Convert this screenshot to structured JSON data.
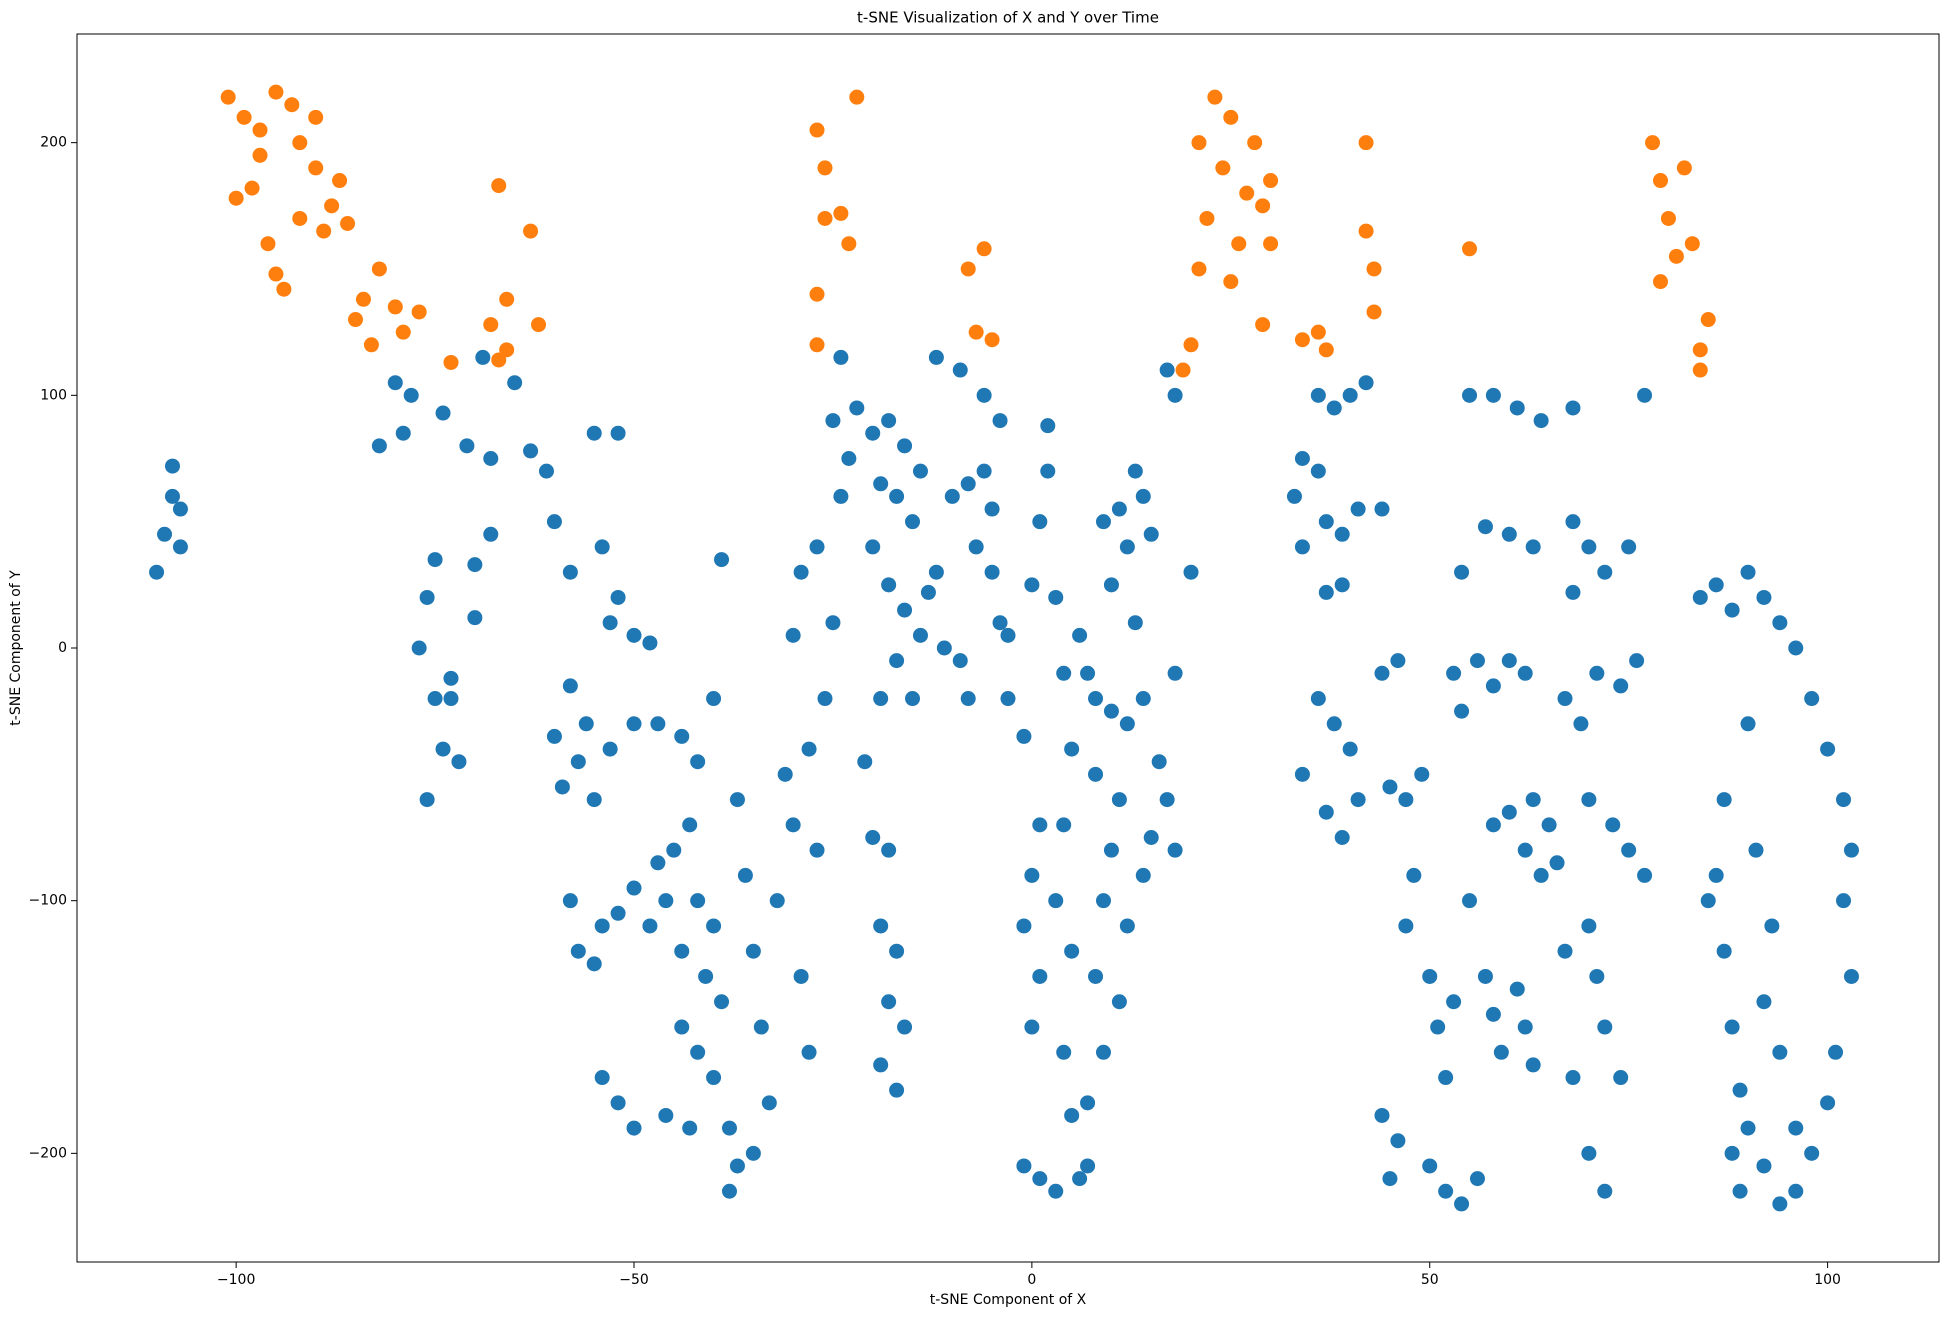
{
  "chart_data": {
    "type": "scatter",
    "title": "t-SNE Visualization of X and Y over Time",
    "x_label": "t-SNE Component of X",
    "y_label": "t-SNE Component of Y",
    "xlim": [
      -120,
      114
    ],
    "ylim": [
      -243,
      243
    ],
    "xticks": [
      {
        "value": -100,
        "label": "−100"
      },
      {
        "value": -50,
        "label": "−50"
      },
      0,
      50,
      100
    ],
    "yticks": [
      {
        "value": -200,
        "label": "−200"
      },
      {
        "value": -100,
        "label": "−100"
      },
      0,
      100,
      200
    ],
    "series": [
      {
        "color": "#1f77b4",
        "x": [
          -110,
          -109,
          -108,
          -108,
          -107,
          -107,
          -82,
          -79,
          -78,
          -80,
          -74,
          -71,
          -68,
          -69,
          -65,
          -63,
          -61,
          -60,
          -58,
          -70,
          -68,
          -75,
          -76,
          -77,
          -75,
          -73,
          -74,
          -76,
          -72,
          -70,
          -73,
          -58,
          -60,
          -59,
          -57,
          -55,
          -52,
          -54,
          -52,
          -53,
          -50,
          -48,
          -56,
          -55,
          -53,
          -50,
          -47,
          -44,
          -42,
          -58,
          -57,
          -55,
          -54,
          -52,
          -50,
          -48,
          -47,
          -45,
          -46,
          -44,
          -43,
          -42,
          -41,
          -44,
          -42,
          -40,
          -39,
          -40,
          -38,
          -37,
          -38,
          -35,
          -54,
          -52,
          -50,
          -46,
          -43,
          -39,
          -40,
          -37,
          -36,
          -35,
          -34,
          -33,
          -32,
          -30,
          -31,
          -29,
          -28,
          -27,
          -28,
          -29,
          -30,
          -27,
          -26,
          -25,
          -24,
          -23,
          -25,
          -24,
          -22,
          -20,
          -18,
          -16,
          -14,
          -19,
          -17,
          -15,
          -20,
          -18,
          -16,
          -14,
          -17,
          -19,
          -15,
          -21,
          -20,
          -18,
          -19,
          -17,
          -18,
          -16,
          -19,
          -17,
          -13,
          -11,
          -9,
          -8,
          -12,
          -10,
          -8,
          -6,
          -5,
          -7,
          -5,
          -12,
          -9,
          -6,
          -4,
          -4,
          -3,
          -3,
          -1,
          1,
          0,
          -1,
          1,
          0,
          -1,
          1,
          3,
          2,
          2,
          1,
          0,
          3,
          4,
          5,
          4,
          3,
          5,
          4,
          5,
          7,
          8,
          9,
          10,
          11,
          8,
          7,
          6,
          8,
          10,
          12,
          14,
          9,
          11,
          13,
          14,
          12,
          10,
          15,
          13,
          12,
          11,
          9,
          7,
          6,
          14,
          15,
          17,
          16,
          18,
          20,
          18,
          17,
          18,
          36,
          38,
          40,
          42,
          34,
          36,
          37,
          33,
          34,
          39,
          41,
          37,
          39,
          36,
          38,
          40,
          34,
          37,
          39,
          41,
          44,
          44,
          46,
          45,
          47,
          49,
          44,
          46,
          45,
          47,
          48,
          50,
          51,
          52,
          50,
          52,
          54,
          56,
          55,
          53,
          57,
          58,
          59,
          61,
          62,
          63,
          58,
          60,
          62,
          64,
          66,
          63,
          65,
          53,
          54,
          56,
          58,
          60,
          62,
          54,
          57,
          60,
          63,
          55,
          58,
          61,
          64,
          68,
          68,
          70,
          72,
          68,
          67,
          69,
          71,
          74,
          76,
          75,
          77,
          70,
          73,
          75,
          77,
          70,
          71,
          72,
          74,
          70,
          72,
          68,
          67,
          84,
          86,
          88,
          90,
          92,
          94,
          96,
          98,
          100,
          102,
          103,
          102,
          103,
          101,
          100,
          98,
          96,
          94,
          92,
          90,
          89,
          88,
          87,
          86,
          87,
          91,
          93,
          92,
          94,
          96,
          88,
          89,
          85,
          90
        ],
        "y": [
          30,
          45,
          60,
          72,
          40,
          55,
          80,
          85,
          100,
          105,
          93,
          80,
          75,
          115,
          105,
          78,
          70,
          50,
          30,
          33,
          45,
          35,
          20,
          0,
          -20,
          -20,
          -40,
          -60,
          -45,
          12,
          -12,
          -15,
          -35,
          -55,
          -45,
          85,
          85,
          40,
          20,
          10,
          5,
          2,
          -30,
          -60,
          -40,
          -30,
          -30,
          -35,
          -45,
          -100,
          -120,
          -125,
          -110,
          -105,
          -95,
          -110,
          -85,
          -80,
          -100,
          -120,
          -70,
          -100,
          -130,
          -150,
          -160,
          -110,
          -140,
          -170,
          -190,
          -205,
          -215,
          -200,
          -170,
          -180,
          -190,
          -185,
          -190,
          35,
          -20,
          -60,
          -90,
          -120,
          -150,
          -180,
          -100,
          -70,
          -50,
          -130,
          -160,
          -80,
          -40,
          30,
          5,
          40,
          -20,
          10,
          60,
          75,
          90,
          115,
          95,
          85,
          90,
          80,
          70,
          65,
          60,
          50,
          40,
          25,
          15,
          5,
          -5,
          -20,
          -20,
          -45,
          -75,
          -80,
          -110,
          -120,
          -140,
          -150,
          -165,
          -175,
          22,
          0,
          -5,
          -20,
          30,
          60,
          65,
          70,
          55,
          40,
          30,
          115,
          110,
          100,
          90,
          10,
          5,
          -20,
          -35,
          -70,
          -90,
          -110,
          -130,
          -150,
          -205,
          -210,
          -215,
          88,
          70,
          50,
          25,
          20,
          -10,
          -40,
          -70,
          -100,
          -120,
          -160,
          -185,
          -180,
          -130,
          -100,
          -80,
          -60,
          -50,
          -10,
          5,
          -20,
          -25,
          -30,
          -20,
          50,
          55,
          70,
          60,
          40,
          25,
          45,
          10,
          -110,
          -140,
          -160,
          -205,
          -210,
          -90,
          -75,
          -60,
          -45,
          -80,
          30,
          -10,
          110,
          100,
          100,
          95,
          100,
          105,
          75,
          70,
          50,
          60,
          40,
          45,
          55,
          22,
          25,
          -20,
          -30,
          -40,
          -50,
          -65,
          -75,
          -60,
          55,
          -10,
          -5,
          -55,
          -60,
          -50,
          -185,
          -195,
          -210,
          -110,
          -90,
          -130,
          -150,
          -170,
          -205,
          -215,
          -220,
          -210,
          -100,
          -140,
          -130,
          -145,
          -160,
          -135,
          -150,
          -165,
          -70,
          -65,
          -80,
          -90,
          -85,
          -60,
          -70,
          -10,
          -25,
          -5,
          -15,
          -5,
          -10,
          30,
          48,
          45,
          40,
          100,
          100,
          95,
          90,
          95,
          50,
          40,
          30,
          22,
          -20,
          -30,
          -10,
          -15,
          -5,
          40,
          100,
          -60,
          -70,
          -80,
          -90,
          -110,
          -130,
          -150,
          -170,
          -200,
          -215,
          -170,
          -120,
          20,
          25,
          15,
          30,
          20,
          10,
          0,
          -20,
          -40,
          -60,
          -80,
          -100,
          -130,
          -160,
          -180,
          -200,
          -215,
          -220,
          -205,
          -190,
          -175,
          -150,
          -120,
          -90,
          -60,
          -80,
          -110,
          -140,
          -160,
          -190,
          -200,
          -215,
          -100,
          -30
        ]
      },
      {
        "color": "#ff7f0e",
        "x": [
          -101,
          -99,
          -97,
          -95,
          -93,
          -92,
          -90,
          -97,
          -100,
          -98,
          -96,
          -95,
          -94,
          -92,
          -89,
          -88,
          -90,
          -87,
          -86,
          -82,
          -84,
          -85,
          -83,
          -80,
          -79,
          -77,
          -73,
          -67,
          -66,
          -68,
          -66,
          -67,
          -63,
          -62,
          -27,
          -26,
          -24,
          -22,
          -23,
          -27,
          -27,
          -26,
          -8,
          -7,
          -5,
          -6,
          20,
          19,
          21,
          22,
          21,
          23,
          25,
          24,
          26,
          27,
          28,
          29,
          30,
          30,
          25,
          29,
          34,
          36,
          37,
          42,
          42,
          43,
          43,
          55,
          78,
          79,
          80,
          81,
          79,
          83,
          82,
          84,
          85,
          84
        ],
        "y": [
          218,
          210,
          205,
          220,
          215,
          200,
          210,
          195,
          178,
          182,
          160,
          148,
          142,
          170,
          165,
          175,
          190,
          185,
          168,
          150,
          138,
          130,
          120,
          135,
          125,
          133,
          113,
          183,
          138,
          128,
          118,
          114,
          165,
          128,
          205,
          190,
          172,
          218,
          160,
          140,
          120,
          170,
          150,
          125,
          122,
          158,
          120,
          110,
          150,
          170,
          200,
          218,
          210,
          190,
          160,
          180,
          200,
          175,
          160,
          185,
          145,
          128,
          122,
          125,
          118,
          200,
          165,
          150,
          133,
          158,
          200,
          185,
          170,
          155,
          145,
          160,
          190,
          110,
          130,
          118
        ]
      }
    ]
  }
}
